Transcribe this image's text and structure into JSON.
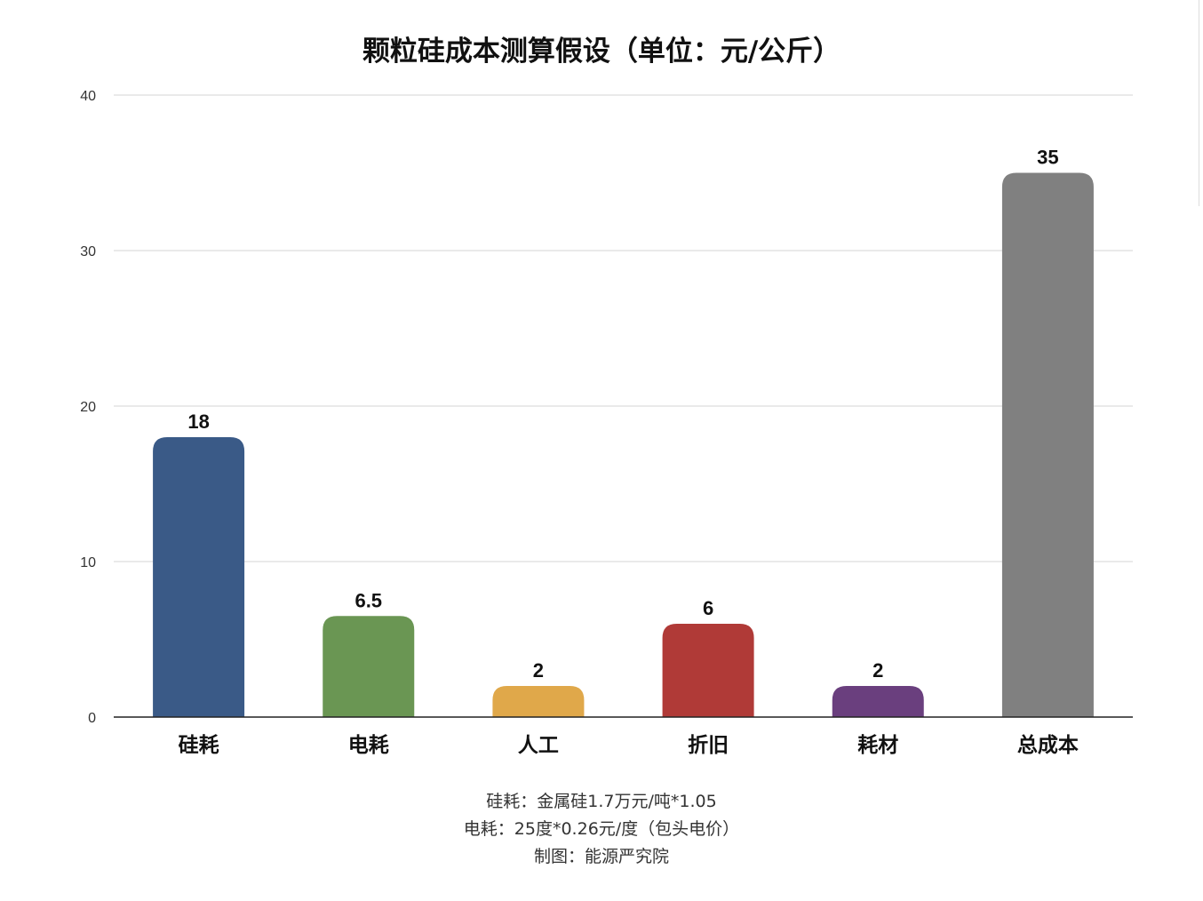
{
  "chart_data": {
    "type": "bar",
    "title": "颗粒硅成本测算假设（单位：元/公斤）",
    "categories": [
      "硅耗",
      "电耗",
      "人工",
      "折旧",
      "耗材",
      "总成本"
    ],
    "values": [
      18,
      6.5,
      2,
      6,
      2,
      35
    ],
    "data_labels": [
      "18",
      "6.5",
      "2",
      "6",
      "2",
      "35"
    ],
    "colors": [
      "#3a5a87",
      "#6a9653",
      "#e0a84a",
      "#b03a37",
      "#6a3f7e",
      "#808080"
    ],
    "ylim": [
      0,
      40
    ],
    "yticks": [
      0,
      10,
      20,
      30,
      40
    ],
    "grid": true,
    "xlabel": "",
    "ylabel": ""
  },
  "notes": [
    "硅耗：金属硅1.7万元/吨*1.05",
    "电耗：25度*0.26元/度（包头电价）",
    "制图：能源严究院"
  ]
}
